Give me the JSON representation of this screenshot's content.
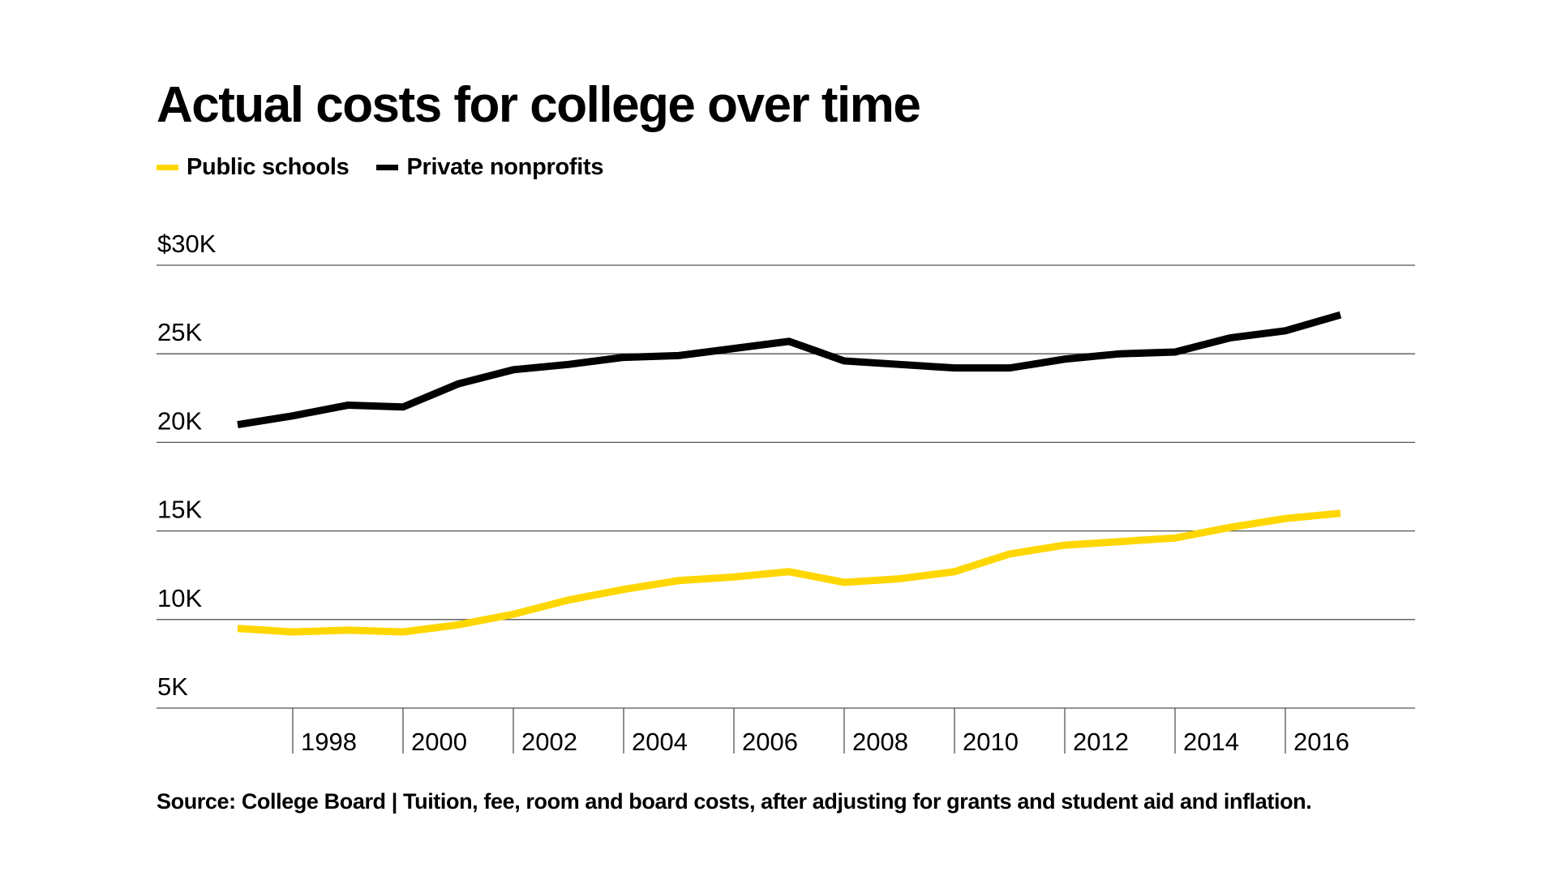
{
  "chart_data": {
    "type": "line",
    "title": "Actual costs for college over time",
    "x": [
      1996,
      1997,
      1998,
      1999,
      2000,
      2001,
      2002,
      2003,
      2004,
      2005,
      2006,
      2007,
      2008,
      2009,
      2010,
      2011,
      2012,
      2013,
      2014,
      2015,
      2016
    ],
    "x_tick_labels": [
      "1998",
      "2000",
      "2002",
      "2004",
      "2006",
      "2008",
      "2010",
      "2012",
      "2014",
      "2016"
    ],
    "y_tick_labels": [
      "$30K",
      "25K",
      "20K",
      "15K",
      "10K",
      "5K"
    ],
    "ylim": [
      5,
      30
    ],
    "y_unit": "thousands of dollars",
    "grid": true,
    "legend_position": "top-left",
    "series": [
      {
        "name": "Public schools",
        "color": "#FFD700",
        "values": [
          9.5,
          9.3,
          9.4,
          9.3,
          9.7,
          10.3,
          11.1,
          11.7,
          12.2,
          12.4,
          12.7,
          12.1,
          12.3,
          12.7,
          13.7,
          14.2,
          14.4,
          14.6,
          15.2,
          15.7,
          16.0
        ]
      },
      {
        "name": "Private nonprofits",
        "color": "#000000",
        "values": [
          21.0,
          21.5,
          22.1,
          22.0,
          23.3,
          24.1,
          24.4,
          24.8,
          24.9,
          25.3,
          25.7,
          24.6,
          24.4,
          24.2,
          24.2,
          24.7,
          25.0,
          25.1,
          25.9,
          26.3,
          27.2
        ]
      }
    ],
    "source": "Source: College Board | Tuition, fee, room and board costs, after adjusting for grants and student aid and inflation."
  }
}
